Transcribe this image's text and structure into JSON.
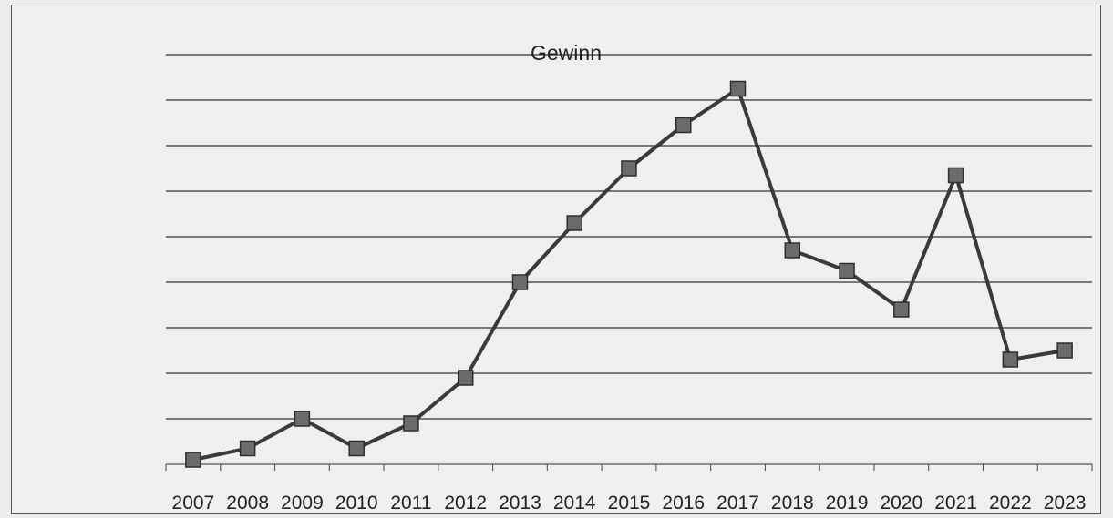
{
  "chart_data": {
    "type": "line",
    "title": "Gewinn",
    "xlabel": "",
    "ylabel": "",
    "categories": [
      "2007",
      "2008",
      "2009",
      "2010",
      "2011",
      "2012",
      "2013",
      "2014",
      "2015",
      "2016",
      "2017",
      "2018",
      "2019",
      "2020",
      "2021",
      "2022",
      "2023"
    ],
    "series": [
      {
        "values": [
          0.2,
          0.7,
          2.0,
          0.7,
          1.8,
          3.8,
          8.0,
          10.6,
          13.0,
          14.9,
          16.5,
          9.4,
          8.5,
          6.8,
          12.7,
          4.6,
          5.0
        ]
      }
    ],
    "ylim": [
      0,
      20
    ],
    "grid": true,
    "legend": "none",
    "colors": {
      "line": "#3a3a3a",
      "marker": "#6b6b6b",
      "grid": "#333333"
    }
  }
}
